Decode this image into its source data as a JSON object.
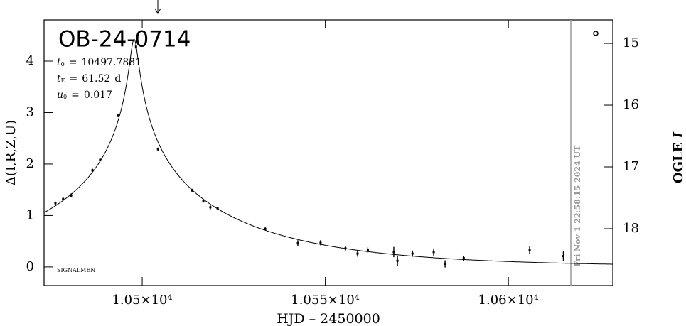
{
  "chart_data": {
    "type": "lightcurve",
    "title": "OB-24-0714",
    "x_label": "HJD – 2450000",
    "y_label": "Δ(I,R,Z,U)",
    "y2_label": {
      "text": "OGLE ",
      "band": "I"
    },
    "footnote": "SIGNALMEN",
    "timestamp": "Fri Nov  1 22:58:15 2024 UT",
    "parameters": [
      {
        "symbol": "t",
        "subscript": "0",
        "relation": "=",
        "value": 10497.7881
      },
      {
        "symbol": "t",
        "subscript": "E",
        "relation": "=",
        "value": 61.52,
        "unit": "d"
      },
      {
        "symbol": "u",
        "subscript": "0",
        "relation": "=",
        "value": 0.017
      }
    ],
    "x": [
      10476.3,
      10478.4,
      10480.6,
      10486.4,
      10488.5,
      10493.4,
      10498.3,
      10504.3,
      10513.6,
      10516.7,
      10518.6,
      10520.6,
      10533.6,
      10542.5,
      10548.7,
      10555.5,
      10558.8,
      10561.6,
      10568.7,
      10569.7,
      10573.8,
      10579.6,
      10582.7,
      10587.8,
      10605.8,
      10615.0
    ],
    "values": [
      1.24,
      1.32,
      1.39,
      1.88,
      2.08,
      2.94,
      4.28,
      2.29,
      1.49,
      1.28,
      1.16,
      1.14,
      0.74,
      0.46,
      0.47,
      0.36,
      0.26,
      0.33,
      0.29,
      0.12,
      0.26,
      0.29,
      0.06,
      0.17,
      0.33,
      0.21
    ],
    "errors": [
      0.03,
      0.03,
      0.04,
      0.03,
      0.03,
      0.03,
      0.05,
      0.03,
      0.03,
      0.03,
      0.04,
      0.03,
      0.03,
      0.06,
      0.05,
      0.04,
      0.06,
      0.05,
      0.1,
      0.1,
      0.06,
      0.07,
      0.07,
      0.05,
      0.08,
      0.1
    ],
    "color": "#000000",
    "xlim": [
      10473.2,
      10628.5
    ],
    "xticks": [
      {
        "value": 10500,
        "label": "1.05×10⁴"
      },
      {
        "value": 10550,
        "label": "1.055×10⁴"
      },
      {
        "value": 10600,
        "label": "1.06×10⁴"
      }
    ],
    "ylim": [
      -0.36,
      4.8
    ],
    "yticks": [
      0,
      1,
      2,
      3,
      4
    ],
    "y2lim": [
      18.92,
      14.62
    ],
    "y2ticks": [
      15,
      16,
      17,
      18
    ]
  }
}
